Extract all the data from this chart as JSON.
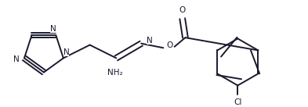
{
  "bg_color": "#ffffff",
  "line_color": "#1a1a2e",
  "line_width": 1.4,
  "font_size": 7.5,
  "figsize": [
    3.93,
    1.37
  ],
  "dpi": 100,
  "xlim": [
    0,
    10
  ],
  "ylim": [
    0,
    3.5
  ]
}
